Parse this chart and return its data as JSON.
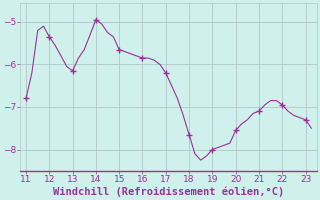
{
  "x": [
    11,
    11.25,
    11.5,
    11.75,
    12,
    12.25,
    12.5,
    12.75,
    13,
    13.25,
    13.5,
    13.75,
    14,
    14.25,
    14.5,
    14.75,
    15,
    15.25,
    15.5,
    15.75,
    16,
    16.25,
    16.5,
    16.75,
    17,
    17.25,
    17.5,
    17.75,
    18,
    18.25,
    18.5,
    18.75,
    19,
    19.25,
    19.5,
    19.75,
    20,
    20.25,
    20.5,
    20.75,
    21,
    21.25,
    21.5,
    21.75,
    22,
    22.25,
    22.5,
    22.75,
    23,
    23.25
  ],
  "y": [
    -6.8,
    -6.2,
    -5.2,
    -5.1,
    -5.35,
    -5.55,
    -5.8,
    -6.05,
    -6.15,
    -5.85,
    -5.65,
    -5.3,
    -4.95,
    -5.05,
    -5.25,
    -5.35,
    -5.65,
    -5.7,
    -5.75,
    -5.8,
    -5.85,
    -5.85,
    -5.9,
    -6.0,
    -6.2,
    -6.5,
    -6.8,
    -7.2,
    -7.65,
    -8.1,
    -8.25,
    -8.15,
    -8.0,
    -7.95,
    -7.9,
    -7.85,
    -7.55,
    -7.4,
    -7.3,
    -7.15,
    -7.1,
    -6.95,
    -6.85,
    -6.85,
    -6.95,
    -7.1,
    -7.2,
    -7.25,
    -7.3,
    -7.5
  ],
  "markers_x": [
    11,
    12,
    13,
    14,
    15,
    16,
    17,
    18,
    19,
    20,
    21,
    22,
    23
  ],
  "markers_y": [
    -6.8,
    -5.35,
    -6.15,
    -4.95,
    -5.65,
    -5.85,
    -6.2,
    -7.65,
    -8.0,
    -7.55,
    -7.1,
    -6.95,
    -7.3
  ],
  "line_color": "#993399",
  "marker_color": "#993399",
  "bg_color": "#cff0eb",
  "grid_color": "#b0c8c8",
  "xlabel": "Windchill (Refroidissement éolien,°C)",
  "xlim": [
    10.75,
    23.5
  ],
  "ylim": [
    -8.5,
    -4.55
  ],
  "yticks": [
    -8,
    -7,
    -6,
    -5
  ],
  "xticks": [
    11,
    12,
    13,
    14,
    15,
    16,
    17,
    18,
    19,
    20,
    21,
    22,
    23
  ],
  "xlabel_color": "#993399",
  "xlabel_fontsize": 7.5,
  "tick_fontsize": 6.5,
  "tick_color": "#993399"
}
